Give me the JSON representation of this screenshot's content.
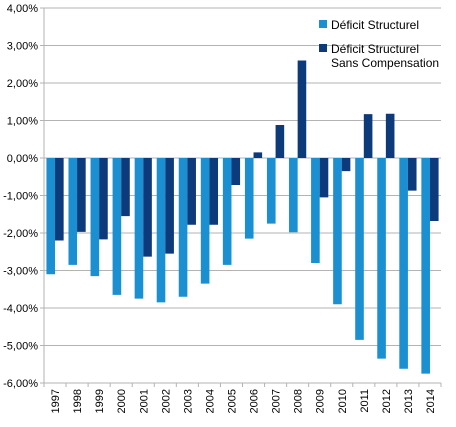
{
  "chart_data": {
    "type": "bar",
    "categories": [
      "1997",
      "1998",
      "1999",
      "2000",
      "2001",
      "2002",
      "2003",
      "2004",
      "2005",
      "2006",
      "2007",
      "2008",
      "2009",
      "2010",
      "2011",
      "2012",
      "2013",
      "2014"
    ],
    "series": [
      {
        "name": "Déficit Structurel",
        "color": "#1a8fd1",
        "values": [
          -3.1,
          -2.85,
          -3.15,
          -3.65,
          -3.75,
          -3.85,
          -3.7,
          -3.35,
          -2.85,
          -2.15,
          -1.75,
          -1.98,
          -2.8,
          -3.9,
          -4.85,
          -5.35,
          -5.62,
          -5.75
        ]
      },
      {
        "name": "Déficit Structurel\nSans Compensation",
        "color": "#0d3a7a",
        "values": [
          -2.2,
          -1.97,
          -2.17,
          -1.55,
          -2.63,
          -2.55,
          -1.78,
          -1.78,
          -0.72,
          0.15,
          0.88,
          2.6,
          -1.05,
          -0.35,
          1.17,
          1.18,
          -0.87,
          -1.68
        ]
      }
    ],
    "ylim": [
      -6,
      4
    ],
    "yticks": [
      "4,00%",
      "3,00%",
      "2,00%",
      "1,00%",
      "0,00%",
      "-1,00%",
      "-2,00%",
      "-3,00%",
      "-4,00%",
      "-5,00%",
      "-6,00%"
    ],
    "grid": true,
    "legend_position": "top-right",
    "title": "",
    "xlabel": "",
    "ylabel": ""
  }
}
